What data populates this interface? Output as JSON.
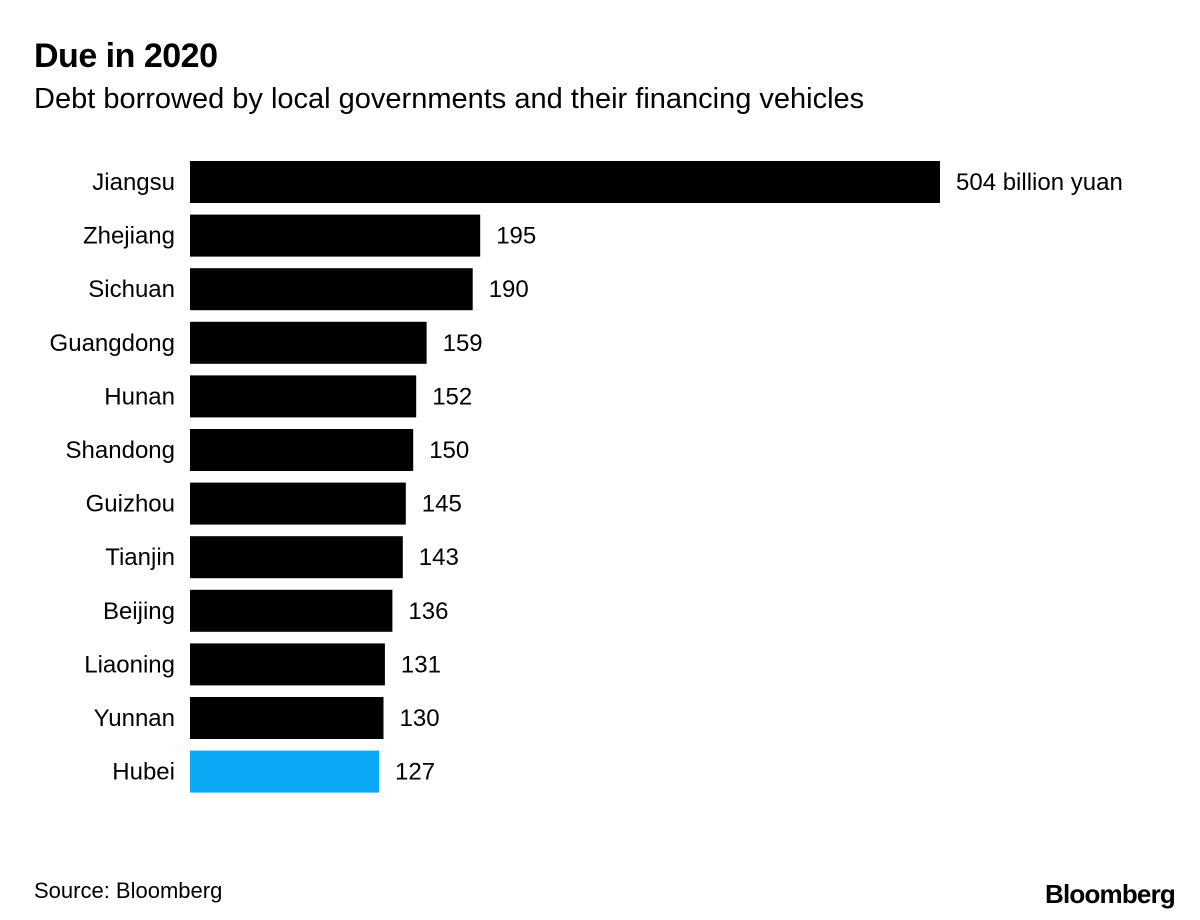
{
  "chart_data": {
    "type": "bar",
    "orientation": "horizontal",
    "title": "Due in 2020",
    "subtitle": "Debt borrowed by local governments and their financing vehicles",
    "categories": [
      "Jiangsu",
      "Zhejiang",
      "Sichuan",
      "Guangdong",
      "Hunan",
      "Shandong",
      "Guizhou",
      "Tianjin",
      "Beijing",
      "Liaoning",
      "Yunnan",
      "Hubei"
    ],
    "values": [
      504,
      195,
      190,
      159,
      152,
      150,
      145,
      143,
      136,
      131,
      130,
      127
    ],
    "value_labels": [
      "504 billion yuan",
      "195",
      "190",
      "159",
      "152",
      "150",
      "145",
      "143",
      "136",
      "131",
      "130",
      "127"
    ],
    "unit": "billion yuan",
    "highlight": "Hubei",
    "colors": {
      "bar": "#000000",
      "highlight": "#0aa8f5"
    },
    "xlim": [
      0,
      504
    ],
    "grid": false,
    "legend": "none"
  },
  "footer": {
    "source": "Source: Bloomberg",
    "brand": "Bloomberg"
  }
}
